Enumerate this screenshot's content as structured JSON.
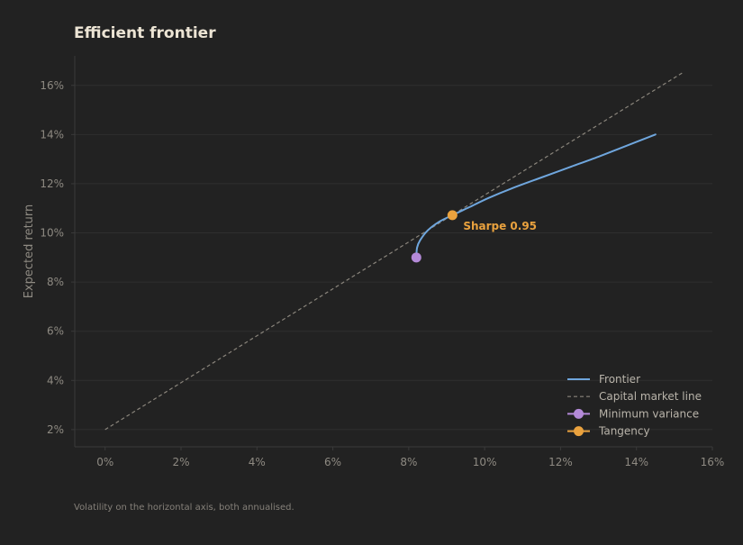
{
  "colors": {
    "background": "#222222",
    "grid": "#2f2f2f",
    "axis": "#3a3a3a",
    "tick_text": "#8e8a82",
    "title": "#ece4d4",
    "frontier": "#6fa6dd",
    "cml": "#8a857c",
    "min_variance": "#b48ad8",
    "tangency": "#eaa23e",
    "legend_text": "#b9b4aa",
    "footnote": "#858079"
  },
  "chart_data": {
    "type": "line",
    "title": "Efficient frontier",
    "xlabel": "",
    "ylabel": "Expected return",
    "xlim": [
      -0.8,
      16
    ],
    "ylim": [
      1.3,
      17.2
    ],
    "x_ticks": [
      0,
      2,
      4,
      6,
      8,
      10,
      12,
      14,
      16
    ],
    "x_tick_labels": [
      "0%",
      "2%",
      "4%",
      "6%",
      "8%",
      "10%",
      "12%",
      "14%",
      "16%"
    ],
    "y_ticks": [
      2,
      4,
      6,
      8,
      10,
      12,
      14,
      16
    ],
    "y_tick_labels": [
      "2%",
      "4%",
      "6%",
      "8%",
      "10%",
      "12%",
      "14%",
      "16%"
    ],
    "grid": true,
    "legend_position": "bottom-right",
    "series": [
      {
        "name": "Frontier",
        "style": "solid",
        "x": [
          8.2,
          8.22,
          8.3,
          8.5,
          8.8,
          9.15,
          9.6,
          10.1,
          10.7,
          11.4,
          12.2,
          13.0,
          13.7,
          14.5
        ],
        "y": [
          9.0,
          9.4,
          9.7,
          10.1,
          10.45,
          10.72,
          11.05,
          11.42,
          11.8,
          12.2,
          12.65,
          13.1,
          13.52,
          14.0
        ]
      },
      {
        "name": "Capital market line",
        "style": "dashed",
        "x": [
          0,
          15.2
        ],
        "y": [
          2.0,
          16.5
        ]
      },
      {
        "name": "Minimum variance",
        "style": "marker",
        "x": [
          8.2
        ],
        "y": [
          9.0
        ]
      },
      {
        "name": "Tangency",
        "style": "marker",
        "x": [
          9.15
        ],
        "y": [
          10.72
        ]
      }
    ],
    "annotations": [
      {
        "text": "Sharpe 0.95",
        "x": 9.15,
        "y": 10.72
      }
    ],
    "footnote": "Volatility on the horizontal axis, both annualised."
  }
}
